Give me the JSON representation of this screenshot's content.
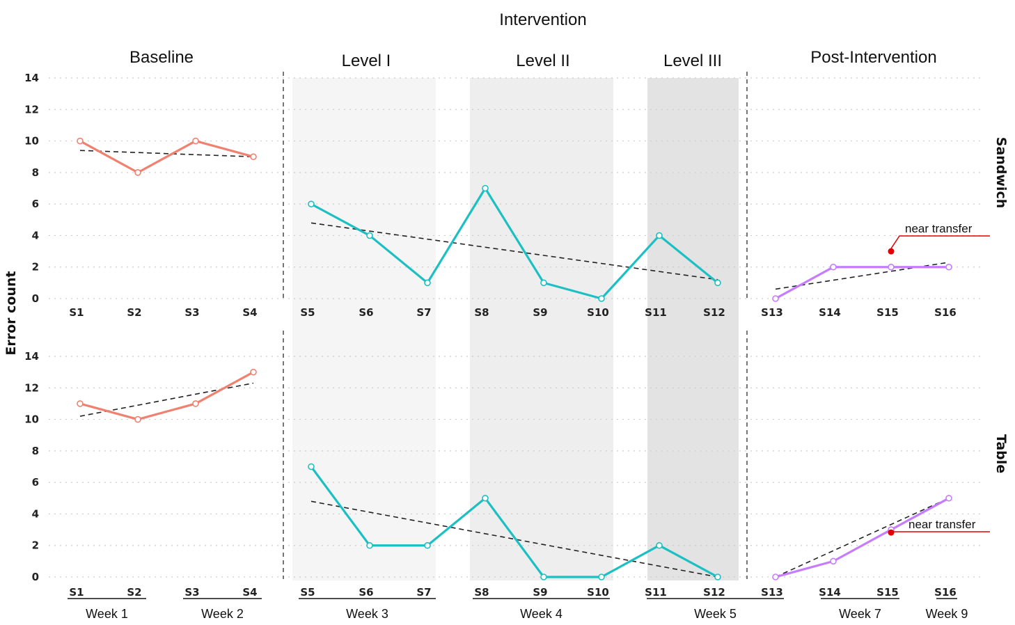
{
  "chart_data": {
    "type": "line",
    "title": "Intervention",
    "ylabel": "Error count",
    "ylim": [
      0,
      14
    ],
    "yticks": [
      0,
      2,
      4,
      6,
      8,
      10,
      12,
      14
    ],
    "grid": "horizontal dotted",
    "phases": [
      {
        "label": "Baseline",
        "sessions": [
          "S1",
          "S2",
          "S3",
          "S4"
        ]
      },
      {
        "label": "Level I",
        "sessions": [
          "S5",
          "S6",
          "S7"
        ]
      },
      {
        "label": "Level II",
        "sessions": [
          "S8",
          "S9",
          "S10"
        ]
      },
      {
        "label": "Level III",
        "sessions": [
          "S11",
          "S12"
        ]
      },
      {
        "label": "Post-Intervention",
        "sessions": [
          "S13",
          "S14",
          "S15",
          "S16"
        ]
      }
    ],
    "sessions": [
      "S1",
      "S2",
      "S3",
      "S4",
      "S5",
      "S6",
      "S7",
      "S8",
      "S9",
      "S10",
      "S11",
      "S12",
      "S13",
      "S14",
      "S15",
      "S16"
    ],
    "weeks": [
      {
        "label": "Week 1",
        "sessions": [
          "S1",
          "S2"
        ]
      },
      {
        "label": "Week 2",
        "sessions": [
          "S3",
          "S4"
        ]
      },
      {
        "label": "Week 3",
        "sessions": [
          "S5",
          "S6",
          "S7"
        ]
      },
      {
        "label": "Week 4",
        "sessions": [
          "S8",
          "S9",
          "S10"
        ]
      },
      {
        "label": "Week 5",
        "sessions": [
          "S11",
          "S12",
          "S13"
        ]
      },
      {
        "label": "Week 7",
        "sessions": [
          "S14",
          "S15"
        ]
      },
      {
        "label": "Week 9",
        "sessions": [
          "S16"
        ]
      }
    ],
    "panels": [
      {
        "facet": "Sandwich",
        "values": [
          10,
          8,
          10,
          9,
          6,
          4,
          1,
          7,
          1,
          0,
          4,
          1,
          0,
          2,
          2,
          2
        ],
        "trends": [
          {
            "from": "S1",
            "to": "S4",
            "y": [
              9.4,
              9.0
            ]
          },
          {
            "from": "S5",
            "to": "S12",
            "y": [
              4.8,
              1.2
            ]
          },
          {
            "from": "S13",
            "to": "S16",
            "y": [
              0.6,
              2.3
            ]
          }
        ],
        "annotation": {
          "text": "near transfer",
          "session": "S15",
          "y": 3
        }
      },
      {
        "facet": "Table",
        "values": [
          11,
          10,
          11,
          13,
          7,
          2,
          2,
          5,
          0,
          0,
          2,
          0,
          0,
          1,
          3,
          5
        ],
        "trends": [
          {
            "from": "S1",
            "to": "S4",
            "y": [
              10.2,
              12.3
            ]
          },
          {
            "from": "S5",
            "to": "S12",
            "y": [
              4.8,
              0
            ]
          },
          {
            "from": "S13",
            "to": "S16",
            "y": [
              0,
              5
            ]
          }
        ],
        "annotation": {
          "text": "near transfer",
          "session": "S15",
          "y": 3
        }
      }
    ],
    "colors": {
      "baseline": "#f08070",
      "intervention": "#1cbfc2",
      "post": "#c77cff",
      "trend": "#222222",
      "annotation": "#e00000",
      "level_i_band": "#f5f5f5",
      "level_ii_band": "#eeeeee",
      "level_iii_band": "#e3e3e3"
    }
  }
}
